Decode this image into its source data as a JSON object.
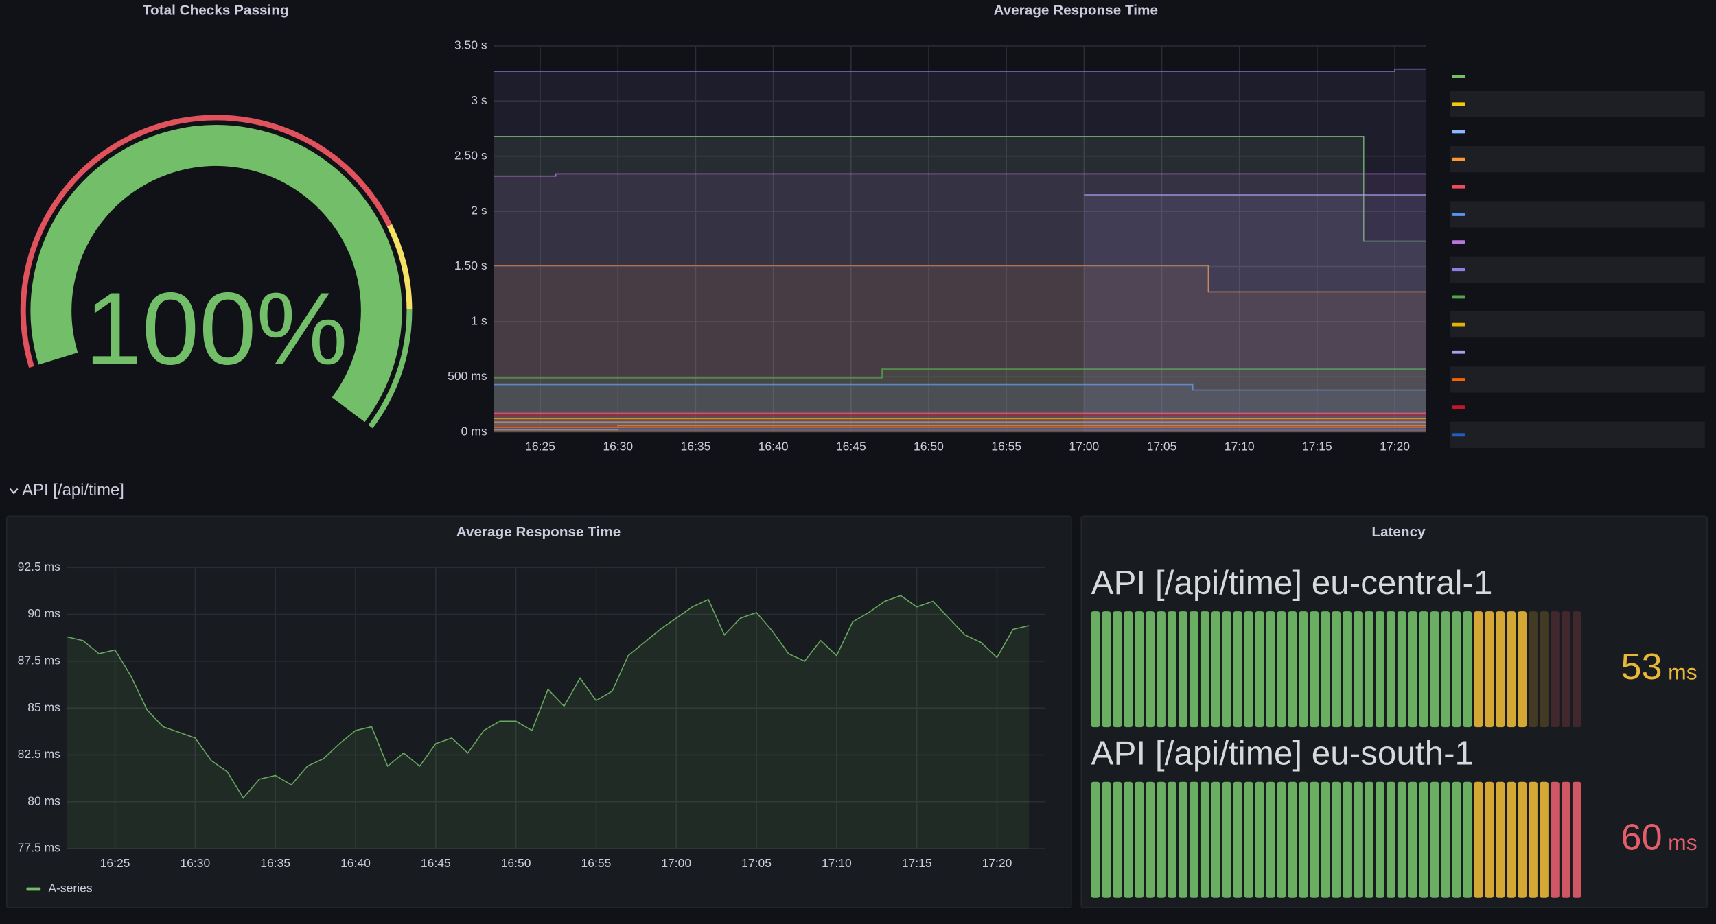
{
  "section_title": "API [/api/time]",
  "chart_data": [
    {
      "type": "gauge",
      "title": "Total Checks Passing",
      "value": 100,
      "value_label": "100%",
      "ylim": [
        0,
        100
      ],
      "thresholds": [
        {
          "value": 0,
          "color": "#e0525c"
        },
        {
          "value": 73,
          "color": "#f5e164"
        },
        {
          "value": 84,
          "color": "#73bf69"
        }
      ]
    },
    {
      "type": "line",
      "title": "Average Response Time",
      "xlim": [
        "16:22",
        "17:22"
      ],
      "xticks": [
        "16:25",
        "16:30",
        "16:35",
        "16:40",
        "16:45",
        "16:50",
        "16:55",
        "17:00",
        "17:05",
        "17:10",
        "17:15",
        "17:20"
      ],
      "ylim": [
        0,
        3.5
      ],
      "yticks": [
        {
          "value": 0,
          "label": "0 ms"
        },
        {
          "value": 0.5,
          "label": "500 ms"
        },
        {
          "value": 1,
          "label": "1 s"
        },
        {
          "value": 1.5,
          "label": "1.50 s"
        },
        {
          "value": 2,
          "label": "2 s"
        },
        {
          "value": 2.5,
          "label": "2.50 s"
        },
        {
          "value": 3,
          "label": "3 s"
        },
        {
          "value": 3.5,
          "label": "3.50 s"
        }
      ],
      "grid": true,
      "fill": true,
      "legend": "right",
      "series": [
        {
          "color": "#73bf69",
          "x": [
            "16:22",
            "17:18",
            "17:18",
            "17:22"
          ],
          "values": [
            2.68,
            2.68,
            1.73,
            1.73
          ]
        },
        {
          "color": "#f2cc0c",
          "x": [
            "16:22",
            "16:30",
            "16:30",
            "17:22"
          ],
          "values": [
            0.02,
            0.02,
            0.06,
            0.06
          ]
        },
        {
          "color": "#8ab8ff",
          "x": [
            "16:22",
            "17:22"
          ],
          "values": [
            0.09,
            0.09
          ]
        },
        {
          "color": "#ff9830",
          "x": [
            "16:22",
            "17:08",
            "17:08",
            "17:22"
          ],
          "values": [
            1.51,
            1.51,
            1.27,
            1.27
          ]
        },
        {
          "color": "#f2495c",
          "x": [
            "16:22",
            "17:22"
          ],
          "values": [
            0.17,
            0.17
          ]
        },
        {
          "color": "#5794f2",
          "x": [
            "16:22",
            "17:07",
            "17:07",
            "17:22"
          ],
          "values": [
            0.43,
            0.43,
            0.38,
            0.38
          ]
        },
        {
          "color": "#b877d9",
          "x": [
            "16:22",
            "16:26",
            "16:26",
            "17:22"
          ],
          "values": [
            2.32,
            2.32,
            2.34,
            2.34
          ]
        },
        {
          "color": "#8f7fe0",
          "x": [
            "16:22",
            "17:20",
            "17:20",
            "17:22"
          ],
          "values": [
            3.27,
            3.27,
            3.29,
            3.29
          ]
        },
        {
          "color": "#56a64b",
          "x": [
            "16:22",
            "16:47",
            "16:47",
            "17:22"
          ],
          "values": [
            0.49,
            0.49,
            0.57,
            0.57
          ]
        },
        {
          "color": "#e0b400",
          "x": [
            "16:22",
            "17:22"
          ],
          "values": [
            0.12,
            0.12
          ]
        },
        {
          "color": "#a9a0f0",
          "x": [
            "17:00",
            "17:22"
          ],
          "values": [
            2.15,
            2.15
          ]
        },
        {
          "color": "#fa6400",
          "x": [
            "16:22",
            "17:22"
          ],
          "values": [
            0.04,
            0.04
          ]
        },
        {
          "color": "#c4162a",
          "x": [
            "16:22",
            "17:22"
          ],
          "values": [
            0.15,
            0.15
          ]
        },
        {
          "color": "#1f60c4",
          "x": [
            "16:22",
            "17:22"
          ],
          "values": [
            0.03,
            0.03
          ]
        }
      ]
    },
    {
      "type": "line",
      "title": "Average Response Time",
      "xlim": [
        "16:22",
        "17:23"
      ],
      "xticks": [
        "16:25",
        "16:30",
        "16:35",
        "16:40",
        "16:45",
        "16:50",
        "16:55",
        "17:00",
        "17:05",
        "17:10",
        "17:15",
        "17:20"
      ],
      "ylim": [
        77.5,
        92.5
      ],
      "yticks": [
        {
          "value": 77.5,
          "label": "77.5 ms"
        },
        {
          "value": 80,
          "label": "80 ms"
        },
        {
          "value": 82.5,
          "label": "82.5 ms"
        },
        {
          "value": 85,
          "label": "85 ms"
        },
        {
          "value": 87.5,
          "label": "87.5 ms"
        },
        {
          "value": 90,
          "label": "90 ms"
        },
        {
          "value": 92.5,
          "label": "92.5 ms"
        }
      ],
      "grid": true,
      "fill": true,
      "legend": "bottom",
      "series": [
        {
          "name": "A-series",
          "color": "#73bf69",
          "x": [
            "16:22",
            "16:23",
            "16:24",
            "16:25",
            "16:26",
            "16:27",
            "16:28",
            "16:29",
            "16:30",
            "16:31",
            "16:32",
            "16:33",
            "16:34",
            "16:35",
            "16:36",
            "16:37",
            "16:38",
            "16:39",
            "16:40",
            "16:41",
            "16:42",
            "16:43",
            "16:44",
            "16:45",
            "16:46",
            "16:47",
            "16:48",
            "16:49",
            "16:50",
            "16:51",
            "16:52",
            "16:53",
            "16:54",
            "16:55",
            "16:56",
            "16:57",
            "16:58",
            "16:59",
            "17:00",
            "17:01",
            "17:02",
            "17:03",
            "17:04",
            "17:05",
            "17:06",
            "17:07",
            "17:08",
            "17:09",
            "17:10",
            "17:11",
            "17:12",
            "17:13",
            "17:14",
            "17:15",
            "17:16",
            "17:17",
            "17:18",
            "17:19",
            "17:20",
            "17:21",
            "17:22"
          ],
          "values": [
            88.8,
            88.6,
            87.9,
            88.1,
            86.7,
            84.9,
            84.0,
            83.7,
            83.4,
            82.2,
            81.6,
            80.2,
            81.2,
            81.4,
            80.9,
            81.9,
            82.3,
            83.1,
            83.8,
            84.0,
            81.9,
            82.6,
            81.9,
            83.1,
            83.4,
            82.6,
            83.8,
            84.3,
            84.3,
            83.8,
            86.0,
            85.1,
            86.6,
            85.4,
            85.9,
            87.8,
            88.5,
            89.2,
            89.8,
            90.4,
            90.8,
            88.9,
            89.8,
            90.1,
            89.1,
            87.9,
            87.5,
            88.6,
            87.8,
            89.6,
            90.1,
            90.7,
            91.0,
            90.4,
            90.7,
            89.8,
            88.9,
            88.5,
            87.7,
            89.2,
            89.4
          ]
        }
      ]
    },
    {
      "type": "bargauge",
      "title": "Latency",
      "ylim": [
        0,
        60
      ],
      "unit": "ms",
      "thresholds": [
        {
          "value": 0,
          "color": "#73bf69"
        },
        {
          "value": 46,
          "color": "#eab839"
        },
        {
          "value": 55,
          "color": "#e35d6a"
        }
      ],
      "items": [
        {
          "name": "API [/api/time] eu-central-1",
          "value": 53
        },
        {
          "name": "API [/api/time] eu-south-1",
          "value": 60
        }
      ]
    }
  ]
}
